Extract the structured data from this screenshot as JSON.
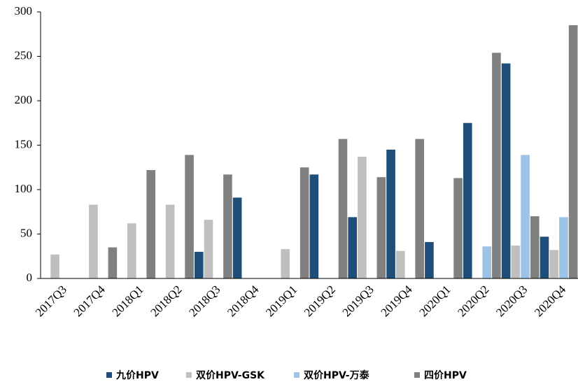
{
  "chart_data": {
    "type": "bar",
    "categories": [
      "2017Q3",
      "2017Q4",
      "2018Q1",
      "2018Q2",
      "2018Q3",
      "2018Q4",
      "2019Q1",
      "2019Q2",
      "2019Q3",
      "2019Q4",
      "2020Q1",
      "2020Q2",
      "2020Q3",
      "2020Q4"
    ],
    "series": [
      {
        "name": "九价HPV",
        "color": "#1f4e79",
        "values": [
          null,
          null,
          null,
          null,
          30,
          91,
          null,
          117,
          69,
          145,
          41,
          175,
          242,
          47
        ]
      },
      {
        "name": "双价HPV-GSK",
        "color": "#bfbfbf",
        "values": [
          27,
          83,
          62,
          83,
          66,
          null,
          33,
          null,
          137,
          31,
          null,
          null,
          37,
          32
        ]
      },
      {
        "name": "双价HPV-万泰",
        "color": "#9dc3e6",
        "values": [
          null,
          null,
          null,
          null,
          null,
          null,
          null,
          null,
          null,
          null,
          null,
          36,
          139,
          69
        ]
      },
      {
        "name": "四价HPV",
        "color": "#808080",
        "values": [
          null,
          35,
          122,
          139,
          117,
          null,
          125,
          157,
          114,
          157,
          113,
          254,
          70,
          285
        ]
      }
    ],
    "ylim": [
      0,
      300
    ],
    "yticks": [
      0,
      50,
      100,
      150,
      200,
      250,
      300
    ],
    "grid": false,
    "legend": "bottom"
  }
}
